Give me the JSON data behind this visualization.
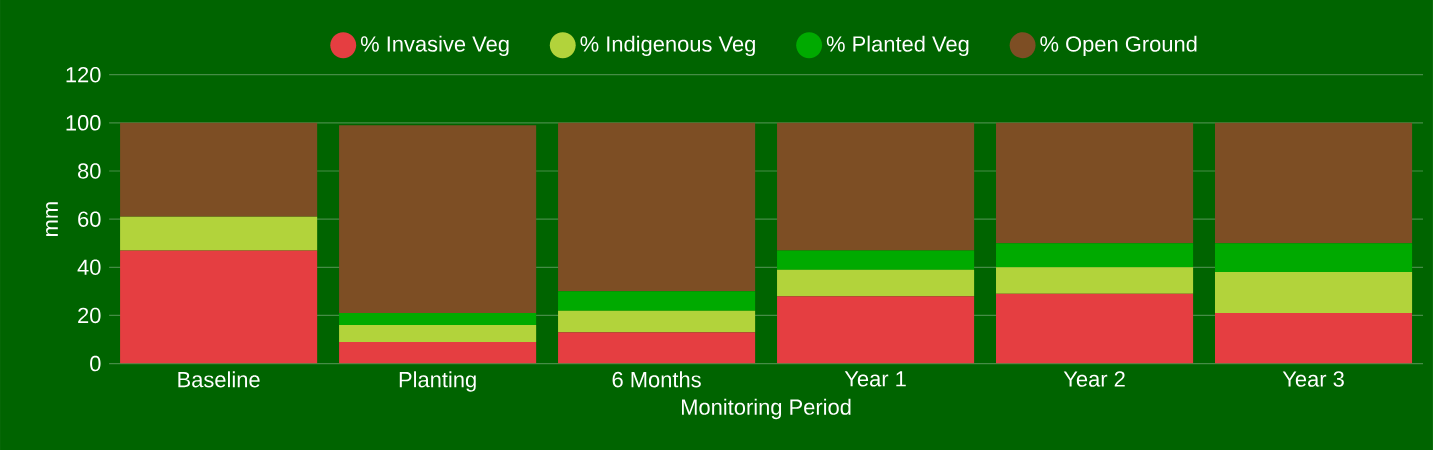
{
  "chart_data": {
    "type": "bar",
    "stacked": true,
    "xlabel": "Monitoring Period",
    "ylabel": "mm",
    "categories": [
      "Baseline",
      "Planting",
      "6 Months",
      "Year 1",
      "Year 2",
      "Year 3"
    ],
    "series": [
      {
        "name": "% Invasive Veg",
        "color": "#e53e41",
        "values": [
          47,
          9,
          13,
          28,
          29,
          21
        ]
      },
      {
        "name": "% Indigenous Veg",
        "color": "#b2d33b",
        "values": [
          14,
          7,
          9,
          11,
          11,
          17
        ]
      },
      {
        "name": "% Planted Veg",
        "color": "#00aa00",
        "values": [
          0,
          5,
          8,
          8,
          10,
          12
        ]
      },
      {
        "name": "% Open Ground",
        "color": "#7d4e24",
        "values": [
          39,
          78,
          70,
          53,
          50,
          50
        ]
      }
    ],
    "ylim": [
      0,
      120
    ],
    "yticks": [
      0,
      20,
      40,
      60,
      80,
      100,
      120
    ],
    "grid": "y",
    "legend": "top"
  }
}
